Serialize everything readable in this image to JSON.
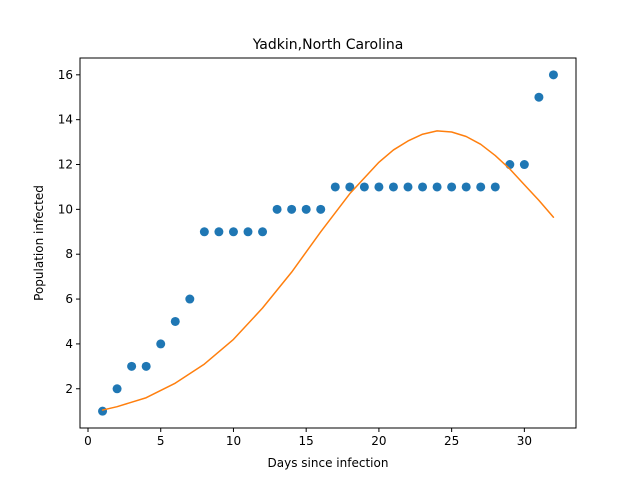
{
  "chart_data": {
    "type": "scatter",
    "title": "Yadkin,North Carolina",
    "xlabel": "Days since infection",
    "ylabel": "Population infected",
    "xlim": [
      -0.55,
      33.55
    ],
    "ylim": [
      0.25,
      16.75
    ],
    "xticks": [
      0,
      5,
      10,
      15,
      20,
      25,
      30
    ],
    "yticks": [
      2,
      4,
      6,
      8,
      10,
      12,
      14,
      16
    ],
    "grid": false,
    "series": [
      {
        "kind": "points",
        "color": "#1f77b4",
        "x": [
          1,
          2,
          3,
          4,
          5,
          6,
          7,
          8,
          9,
          10,
          11,
          12,
          13,
          14,
          15,
          16,
          17,
          18,
          19,
          20,
          21,
          22,
          23,
          24,
          25,
          26,
          27,
          28,
          29,
          30,
          31,
          32
        ],
        "y": [
          1,
          2,
          3,
          3,
          4,
          5,
          6,
          9,
          9,
          9,
          9,
          9,
          10,
          10,
          10,
          10,
          11,
          11,
          11,
          11,
          11,
          11,
          11,
          11,
          11,
          11,
          11,
          11,
          12,
          12,
          15,
          16
        ]
      },
      {
        "kind": "line",
        "color": "#ff7f0e",
        "x": [
          1,
          2,
          4,
          6,
          8,
          10,
          12,
          14,
          16,
          18,
          20,
          21,
          22,
          23,
          24,
          25,
          26,
          27,
          28,
          29,
          30,
          31,
          32
        ],
        "y": [
          1.05,
          1.2,
          1.6,
          2.25,
          3.1,
          4.2,
          5.6,
          7.2,
          9.0,
          10.7,
          12.1,
          12.65,
          13.05,
          13.35,
          13.5,
          13.45,
          13.25,
          12.9,
          12.4,
          11.8,
          11.1,
          10.4,
          9.65
        ]
      }
    ]
  }
}
